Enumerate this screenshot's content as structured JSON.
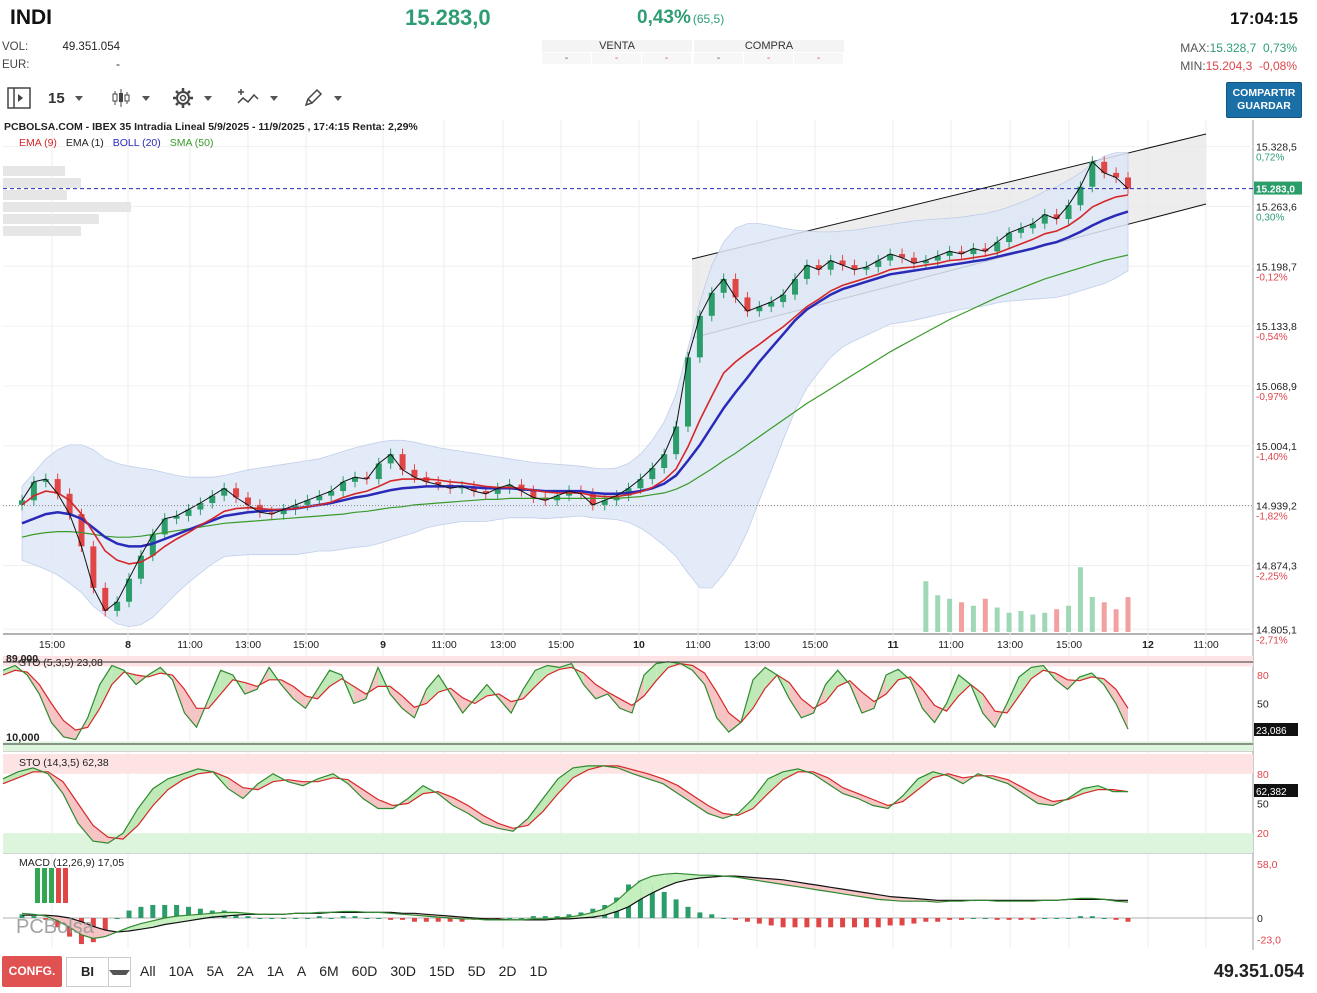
{
  "header": {
    "symbol": "INDI",
    "last": "15.283,0",
    "change_pct": "0,43%",
    "change_abs": "(65,5)",
    "time": "17:04:15",
    "vol_label": "VOL:",
    "vol_value": "49.351.054",
    "eur_label": "EUR:",
    "eur_value": "-",
    "max_label": "MAX:",
    "max_value": "15.328,7",
    "max_pct": "0,73%",
    "min_label": "MIN:",
    "min_value": "15.204,3",
    "min_pct": "-0,08%"
  },
  "order_book": {
    "sell_label": "VENTA",
    "buy_label": "COMPRA",
    "sell_cells": [
      "-",
      "-",
      "-"
    ],
    "buy_cells": [
      "-",
      "-",
      "-"
    ]
  },
  "toolbar": {
    "interval": "15",
    "share_line1": "COMPARTIR",
    "share_line2": "GUARDAR"
  },
  "chart_header": {
    "title": "PCBOLSA.COM - IBEX 35 Intradia Lineal 5/9/2025 - 11/9/2025 , 17:4:15 Renta: 2,29%",
    "legend": [
      {
        "label": "EMA (9)",
        "color": "#d62728"
      },
      {
        "label": "EMA (1)",
        "color": "#222222"
      },
      {
        "label": "BOLL (20)",
        "color": "#2a2ab8"
      },
      {
        "label": "SMA (50)",
        "color": "#3a9a2a"
      }
    ]
  },
  "chart_data": [
    {
      "type": "candlestick",
      "title": "PCBOLSA.COM - IBEX 35 Intradia Lineal 5/9/2025 - 11/9/2025 , 17:4:15 Renta: 2,29%",
      "y_ticks": [
        "15.328,5",
        "15.263,6",
        "15.198,7",
        "15.133,8",
        "15.068,9",
        "15.004,1",
        "14.939,2",
        "14.874,3",
        "14.805,1"
      ],
      "y_pct_ticks": [
        "0,72%",
        "0,30%",
        "-0,12%",
        "-0,54%",
        "-0,97%",
        "-1,40%",
        "-1,82%",
        "-2,25%",
        "-2,71%"
      ],
      "last_marker": "15.283,0",
      "x_ticks": [
        "15:00",
        "8",
        "11:00",
        "13:00",
        "15:00",
        "9",
        "11:00",
        "13:00",
        "15:00",
        "10",
        "11:00",
        "13:00",
        "15:00",
        "11",
        "11:00",
        "13:00",
        "15:00",
        "12",
        "11:00"
      ],
      "close": [
        14945,
        14965,
        14968,
        14952,
        14930,
        14895,
        14850,
        14825,
        14835,
        14860,
        14885,
        14908,
        14925,
        14928,
        14935,
        14942,
        14950,
        14958,
        14948,
        14940,
        14932,
        14930,
        14935,
        14940,
        14945,
        14950,
        14955,
        14965,
        14970,
        14968,
        14985,
        14995,
        14978,
        14970,
        14965,
        14962,
        14958,
        14960,
        14955,
        14952,
        14958,
        14962,
        14955,
        14948,
        14945,
        14950,
        14955,
        14952,
        14940,
        14945,
        14950,
        14958,
        14968,
        14980,
        14995,
        15025,
        15100,
        15145,
        15170,
        15185,
        15165,
        15150,
        15155,
        15160,
        15168,
        15185,
        15200,
        15195,
        15205,
        15200,
        15195,
        15198,
        15205,
        15212,
        15208,
        15202,
        15205,
        15210,
        15215,
        15212,
        15218,
        15215,
        15225,
        15235,
        15240,
        15245,
        15255,
        15250,
        15265,
        15285,
        15312,
        15300,
        15295,
        15283
      ],
      "ema9": [
        14940,
        14950,
        14955,
        14953,
        14945,
        14930,
        14910,
        14890,
        14880,
        14876,
        14878,
        14885,
        14895,
        14903,
        14910,
        14918,
        14925,
        14933,
        14936,
        14937,
        14936,
        14935,
        14935,
        14936,
        14938,
        14940,
        14943,
        14948,
        14952,
        14955,
        14960,
        14966,
        14968,
        14968,
        14968,
        14967,
        14965,
        14964,
        14962,
        14960,
        14959,
        14959,
        14958,
        14956,
        14954,
        14953,
        14953,
        14953,
        14950,
        14949,
        14949,
        14951,
        14954,
        14959,
        14967,
        14979,
        15003,
        15032,
        15058,
        15083,
        15095,
        15105,
        15114,
        15124,
        15133,
        15144,
        15155,
        15163,
        15172,
        15178,
        15182,
        15186,
        15190,
        15195,
        15197,
        15198,
        15200,
        15202,
        15205,
        15206,
        15208,
        15210,
        15213,
        15218,
        15223,
        15228,
        15234,
        15237,
        15243,
        15252,
        15263,
        15269,
        15274,
        15276
      ],
      "boll_mid": [
        14920,
        14925,
        14930,
        14932,
        14930,
        14925,
        14915,
        14905,
        14898,
        14895,
        14895,
        14898,
        14903,
        14908,
        14913,
        14918,
        14923,
        14928,
        14930,
        14932,
        14933,
        14934,
        14935,
        14936,
        14938,
        14940,
        14942,
        14945,
        14948,
        14950,
        14953,
        14956,
        14958,
        14959,
        14960,
        14960,
        14960,
        14960,
        14959,
        14958,
        14958,
        14958,
        14957,
        14956,
        14955,
        14955,
        14955,
        14955,
        14953,
        14952,
        14952,
        14953,
        14955,
        14958,
        14963,
        14972,
        14988,
        15005,
        15025,
        15045,
        15062,
        15078,
        15095,
        15110,
        15125,
        15140,
        15152,
        15160,
        15168,
        15174,
        15178,
        15182,
        15186,
        15190,
        15192,
        15194,
        15196,
        15198,
        15200,
        15202,
        15204,
        15206,
        15209,
        15212,
        15215,
        15218,
        15222,
        15225,
        15230,
        15236,
        15243,
        15249,
        15254,
        15258
      ],
      "boll_upper": [
        14960,
        14975,
        14990,
        15000,
        15005,
        15005,
        15000,
        14990,
        14985,
        14982,
        14980,
        14978,
        14975,
        14972,
        14970,
        14970,
        14970,
        14972,
        14975,
        14978,
        14980,
        14982,
        14984,
        14986,
        14988,
        14990,
        14994,
        14998,
        15002,
        15005,
        15008,
        15010,
        15010,
        15008,
        15005,
        15002,
        15000,
        14998,
        14996,
        14994,
        14992,
        14990,
        14988,
        14986,
        14985,
        14984,
        14983,
        14982,
        14980,
        14979,
        14980,
        14985,
        14995,
        15010,
        15030,
        15060,
        15110,
        15160,
        15200,
        15225,
        15240,
        15245,
        15245,
        15243,
        15240,
        15238,
        15237,
        15236,
        15236,
        15237,
        15238,
        15240,
        15242,
        15244,
        15246,
        15248,
        15249,
        15250,
        15251,
        15252,
        15254,
        15256,
        15259,
        15263,
        15268,
        15273,
        15280,
        15285,
        15292,
        15300,
        15310,
        15318,
        15322,
        15322
      ],
      "boll_lower": [
        14880,
        14875,
        14870,
        14864,
        14855,
        14845,
        14830,
        14820,
        14811,
        14808,
        14810,
        14818,
        14831,
        14844,
        14856,
        14866,
        14876,
        14884,
        14885,
        14886,
        14886,
        14886,
        14886,
        14886,
        14888,
        14890,
        14890,
        14892,
        14894,
        14895,
        14898,
        14902,
        14906,
        14910,
        14915,
        14918,
        14920,
        14922,
        14922,
        14922,
        14924,
        14926,
        14926,
        14926,
        14925,
        14926,
        14927,
        14928,
        14926,
        14925,
        14924,
        14921,
        14915,
        14906,
        14896,
        14884,
        14866,
        14850,
        14850,
        14865,
        14884,
        14911,
        14945,
        14977,
        15010,
        15042,
        15067,
        15084,
        15100,
        15111,
        15118,
        15124,
        15130,
        15136,
        15138,
        15140,
        15143,
        15146,
        15149,
        15152,
        15154,
        15156,
        15159,
        15161,
        15162,
        15163,
        15164,
        15165,
        15168,
        15172,
        15176,
        15180,
        15186,
        15194
      ],
      "sma50": [
        14905,
        14908,
        14910,
        14911,
        14911,
        14910,
        14908,
        14906,
        14905,
        14905,
        14906,
        14908,
        14910,
        14912,
        14914,
        14916,
        14918,
        14920,
        14921,
        14922,
        14923,
        14924,
        14925,
        14926,
        14927,
        14928,
        14929,
        14930,
        14932,
        14933,
        14935,
        14937,
        14938,
        14940,
        14941,
        14942,
        14943,
        14944,
        14945,
        14946,
        14946,
        14947,
        14947,
        14947,
        14947,
        14947,
        14947,
        14947,
        14947,
        14947,
        14947,
        14948,
        14949,
        14951,
        14953,
        14957,
        14963,
        14971,
        14979,
        14988,
        14996,
        15005,
        15014,
        15023,
        15032,
        15041,
        15050,
        15058,
        15066,
        15074,
        15082,
        15090,
        15098,
        15106,
        15113,
        15120,
        15127,
        15134,
        15141,
        15147,
        15153,
        15159,
        15165,
        15170,
        15175,
        15180,
        15185,
        15189,
        15193,
        15197,
        15201,
        15205,
        15208,
        15211
      ],
      "volume_visible_from_index": 76,
      "volume": [
        30,
        22,
        18,
        16,
        24,
        18,
        12,
        14,
        12,
        10,
        8,
        12,
        10,
        18,
        10,
        12,
        8,
        12,
        10,
        14,
        22,
        35,
        12,
        20,
        18,
        26,
        12,
        24,
        40,
        30,
        22,
        18,
        14,
        18,
        10,
        14,
        10,
        16,
        14,
        14,
        12,
        18,
        12,
        16,
        10,
        14,
        10,
        12,
        14,
        18,
        18,
        22,
        26,
        30,
        28,
        36,
        60,
        40,
        35,
        30,
        26,
        20,
        18,
        16,
        14,
        14,
        12,
        14,
        12,
        12,
        12,
        14,
        14,
        12,
        12,
        14,
        58,
        42,
        38,
        34,
        30,
        38,
        28,
        22,
        24,
        20,
        22,
        26,
        30,
        74,
        40,
        34,
        26,
        40
      ]
    },
    {
      "type": "line",
      "title": "STO (5,3,5)",
      "value": "23,08",
      "marker": "23,086",
      "upper_label": "89,000",
      "lower_label": "10,000",
      "y_ticks": [
        "80",
        "50"
      ],
      "k": [
        85,
        90,
        80,
        60,
        30,
        15,
        12,
        35,
        70,
        90,
        85,
        70,
        80,
        88,
        75,
        40,
        25,
        55,
        85,
        80,
        60,
        65,
        88,
        70,
        55,
        45,
        65,
        85,
        80,
        50,
        55,
        88,
        60,
        45,
        35,
        65,
        80,
        60,
        40,
        55,
        70,
        55,
        40,
        65,
        85,
        90,
        88,
        92,
        70,
        55,
        60,
        45,
        40,
        80,
        92,
        94,
        92,
        85,
        70,
        35,
        20,
        30,
        75,
        88,
        80,
        55,
        35,
        40,
        70,
        85,
        70,
        40,
        45,
        80,
        86,
        75,
        45,
        30,
        50,
        80,
        70,
        40,
        25,
        50,
        78,
        88,
        90,
        75,
        65,
        78,
        82,
        70,
        50,
        23
      ],
      "d": [
        80,
        85,
        83,
        70,
        50,
        32,
        22,
        25,
        45,
        70,
        83,
        80,
        78,
        82,
        80,
        65,
        45,
        45,
        60,
        75,
        72,
        68,
        75,
        75,
        68,
        58,
        55,
        68,
        76,
        68,
        60,
        68,
        68,
        58,
        46,
        50,
        62,
        66,
        56,
        50,
        58,
        60,
        52,
        55,
        68,
        80,
        86,
        88,
        82,
        70,
        62,
        55,
        48,
        58,
        74,
        88,
        92,
        90,
        82,
        62,
        40,
        30,
        45,
        66,
        80,
        72,
        55,
        45,
        52,
        68,
        74,
        62,
        52,
        60,
        75,
        78,
        65,
        48,
        42,
        58,
        70,
        60,
        42,
        40,
        58,
        76,
        85,
        82,
        75,
        74,
        78,
        76,
        65,
        45
      ]
    },
    {
      "type": "line",
      "title": "STO (14,3,5)",
      "value": "62,38",
      "marker": "62,382",
      "y_ticks": [
        "80",
        "50",
        "20"
      ],
      "k": [
        75,
        82,
        86,
        80,
        60,
        30,
        12,
        10,
        20,
        45,
        65,
        75,
        80,
        85,
        82,
        65,
        55,
        70,
        80,
        72,
        68,
        75,
        80,
        70,
        55,
        45,
        45,
        55,
        68,
        60,
        48,
        40,
        30,
        25,
        22,
        35,
        55,
        75,
        86,
        88,
        88,
        86,
        80,
        75,
        70,
        60,
        50,
        40,
        35,
        40,
        55,
        75,
        82,
        85,
        80,
        70,
        60,
        55,
        48,
        45,
        58,
        75,
        82,
        78,
        70,
        80,
        75,
        70,
        60,
        50,
        48,
        55,
        65,
        68,
        62,
        62
      ],
      "d": [
        70,
        76,
        82,
        82,
        72,
        50,
        28,
        16,
        14,
        28,
        48,
        64,
        74,
        80,
        82,
        76,
        66,
        64,
        72,
        74,
        72,
        72,
        76,
        74,
        64,
        54,
        48,
        50,
        60,
        62,
        56,
        48,
        38,
        30,
        25,
        28,
        42,
        60,
        76,
        84,
        88,
        88,
        84,
        80,
        75,
        68,
        58,
        48,
        40,
        38,
        45,
        60,
        74,
        82,
        82,
        76,
        66,
        60,
        54,
        48,
        52,
        64,
        76,
        80,
        76,
        78,
        78,
        74,
        66,
        58,
        52,
        54,
        60,
        64,
        64,
        62
      ]
    },
    {
      "type": "bar",
      "title": "MACD (12,26,9)",
      "value": "17,05",
      "y_ticks": [
        "58,0",
        "0",
        "-23,0"
      ],
      "macd": [
        5,
        4,
        2,
        -3,
        -10,
        -18,
        -22,
        -20,
        -15,
        -10,
        -6,
        -3,
        0,
        2,
        3,
        4,
        5,
        6,
        6,
        5,
        4,
        4,
        4,
        5,
        5,
        6,
        6,
        7,
        7,
        6,
        6,
        5,
        4,
        3,
        2,
        1,
        0,
        -1,
        -1,
        -2,
        -2,
        -2,
        -2,
        -1,
        -1,
        0,
        1,
        3,
        6,
        10,
        18,
        30,
        40,
        45,
        47,
        48,
        47,
        46,
        46,
        45,
        44,
        42,
        40,
        38,
        36,
        34,
        32,
        30,
        28,
        26,
        24,
        22,
        20,
        19,
        18,
        18,
        18,
        17,
        18,
        18,
        19,
        19,
        18,
        18,
        18,
        18,
        19,
        19,
        20,
        21,
        21,
        20,
        18,
        17
      ],
      "signal": [
        3,
        3,
        3,
        2,
        0,
        -4,
        -9,
        -13,
        -15,
        -14,
        -12,
        -10,
        -7,
        -5,
        -3,
        -1,
        1,
        2,
        3,
        4,
        4,
        4,
        4,
        5,
        5,
        5,
        6,
        6,
        6,
        6,
        6,
        6,
        5,
        5,
        4,
        3,
        2,
        1,
        0,
        -1,
        -1,
        -2,
        -2,
        -2,
        -2,
        -1,
        -1,
        0,
        1,
        3,
        7,
        12,
        20,
        27,
        33,
        38,
        41,
        43,
        44,
        45,
        45,
        44,
        43,
        42,
        41,
        39,
        37,
        35,
        33,
        31,
        29,
        27,
        25,
        23,
        22,
        21,
        20,
        19,
        19,
        19,
        19,
        19,
        19,
        19,
        19,
        19,
        19,
        19,
        20,
        20,
        20,
        20,
        19,
        19
      ]
    }
  ],
  "bottom": {
    "config": "CONFG.",
    "mode": "BI",
    "periods": [
      "All",
      "10A",
      "5A",
      "2A",
      "1A",
      "A",
      "6M",
      "60D",
      "30D",
      "15D",
      "5D",
      "2D",
      "1D"
    ],
    "total": "49.351.054"
  },
  "watermark": "PCBolsa",
  "colors": {
    "up": "#2a9d6a",
    "down": "#e04646",
    "ema9": "#d62728",
    "boll": "#2a2ab8",
    "sma50": "#3a9a2a",
    "band_fill": "#dfe8f7"
  }
}
